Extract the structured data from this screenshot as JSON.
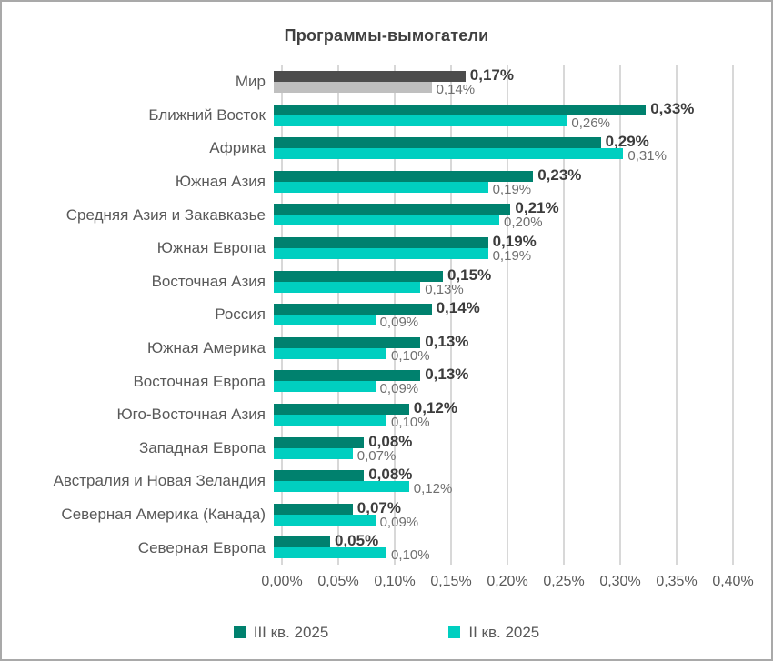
{
  "chart_data": {
    "type": "bar",
    "orientation": "horizontal",
    "title": "Программы-вымогатели",
    "xlabel": "",
    "ylabel": "",
    "xlim": [
      0,
      0.4
    ],
    "x_ticks": [
      "0,00%",
      "0,05%",
      "0,10%",
      "0,15%",
      "0,20%",
      "0,25%",
      "0,30%",
      "0,35%",
      "0,40%"
    ],
    "grid": "vertical",
    "legend_position": "bottom",
    "categories": [
      "Мир",
      "Ближний Восток",
      "Африка",
      "Южная Азия",
      "Средняя Азия и Закавказье",
      "Южная Европа",
      "Восточная Азия",
      "Россия",
      "Южная Америка",
      "Восточная Европа",
      "Юго-Восточная Азия",
      "Западная Европа",
      "Австралия и Новая Зеландия",
      "Северная Америка (Канада)",
      "Северная Европа"
    ],
    "series": [
      {
        "name": "III кв. 2025",
        "color": "#00816E",
        "values": [
          0.17,
          0.33,
          0.29,
          0.23,
          0.21,
          0.19,
          0.15,
          0.14,
          0.13,
          0.13,
          0.12,
          0.08,
          0.08,
          0.07,
          0.05
        ],
        "labels": [
          "0,17%",
          "0,33%",
          "0,29%",
          "0,23%",
          "0,21%",
          "0,19%",
          "0,15%",
          "0,14%",
          "0,13%",
          "0,13%",
          "0,12%",
          "0,08%",
          "0,08%",
          "0,07%",
          "0,05%"
        ]
      },
      {
        "name": "II кв. 2025",
        "color": "#00CFC0",
        "values": [
          0.14,
          0.26,
          0.31,
          0.19,
          0.2,
          0.19,
          0.13,
          0.09,
          0.1,
          0.09,
          0.1,
          0.07,
          0.12,
          0.09,
          0.1
        ],
        "labels": [
          "0,14%",
          "0,26%",
          "0,31%",
          "0,19%",
          "0,20%",
          "0,19%",
          "0,13%",
          "0,09%",
          "0,10%",
          "0,09%",
          "0,10%",
          "0,07%",
          "0,12%",
          "0,09%",
          "0,10%"
        ]
      }
    ],
    "highlight_category": {
      "name": "Мир",
      "index": 0,
      "colors": [
        "#4D4D4D",
        "#BFBFBF"
      ]
    },
    "colors": {
      "gridline": "#d8d8d8",
      "title_text": "#404040",
      "category_text": "#595959",
      "value_label_primary": "#3d3d3d",
      "value_label_secondary": "#6f6f6f"
    }
  }
}
